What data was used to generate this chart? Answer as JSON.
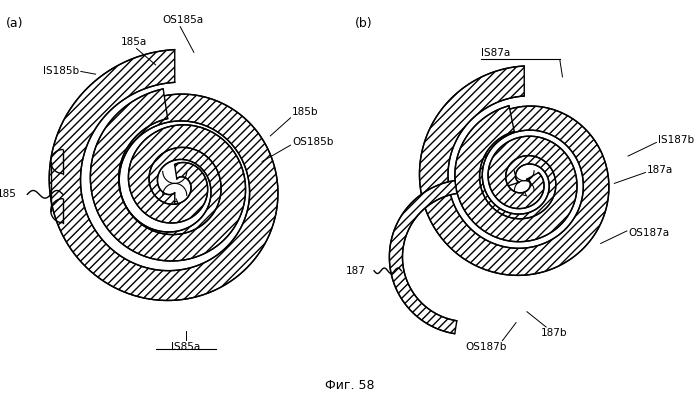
{
  "title": "Фиг. 58",
  "label_a": "(a)",
  "label_b": "(b)",
  "bg_color": "#ffffff",
  "line_color": "#000000",
  "fig_width": 6.99,
  "fig_height": 3.96,
  "dpi": 100
}
